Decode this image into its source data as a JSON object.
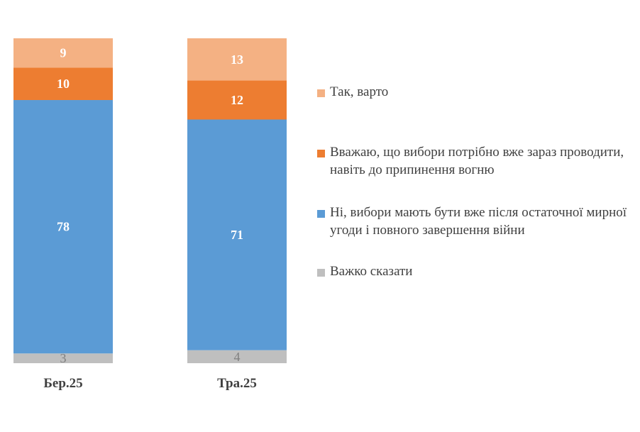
{
  "chart_data": {
    "type": "bar",
    "stacked": true,
    "categories": [
      "Бер.25",
      "Тра.25"
    ],
    "series": [
      {
        "name": "Важко сказати",
        "values": [
          3,
          4
        ],
        "color": "#bfbfbf",
        "label_color": "#7f7f7f"
      },
      {
        "name": "Ні, вибори мають бути вже після остаточної мирної угоди і повного завершення війни",
        "values": [
          78,
          71
        ],
        "color": "#5b9bd5",
        "label_color": "#ffffff"
      },
      {
        "name": "Вважаю, що вибори потрібно вже зараз проводити, навіть до припинення вогню",
        "values": [
          10,
          12
        ],
        "color": "#ed7d31",
        "label_color": "#ffffff"
      },
      {
        "name": "Так, варто",
        "values": [
          9,
          13
        ],
        "color": "#f4b183",
        "label_color": "#ffffff"
      }
    ],
    "legend_order": [
      3,
      2,
      1,
      0
    ],
    "legend_position": "right",
    "title": "",
    "xlabel": "",
    "ylabel": "",
    "ylim": [
      0,
      100
    ],
    "grid": false
  }
}
